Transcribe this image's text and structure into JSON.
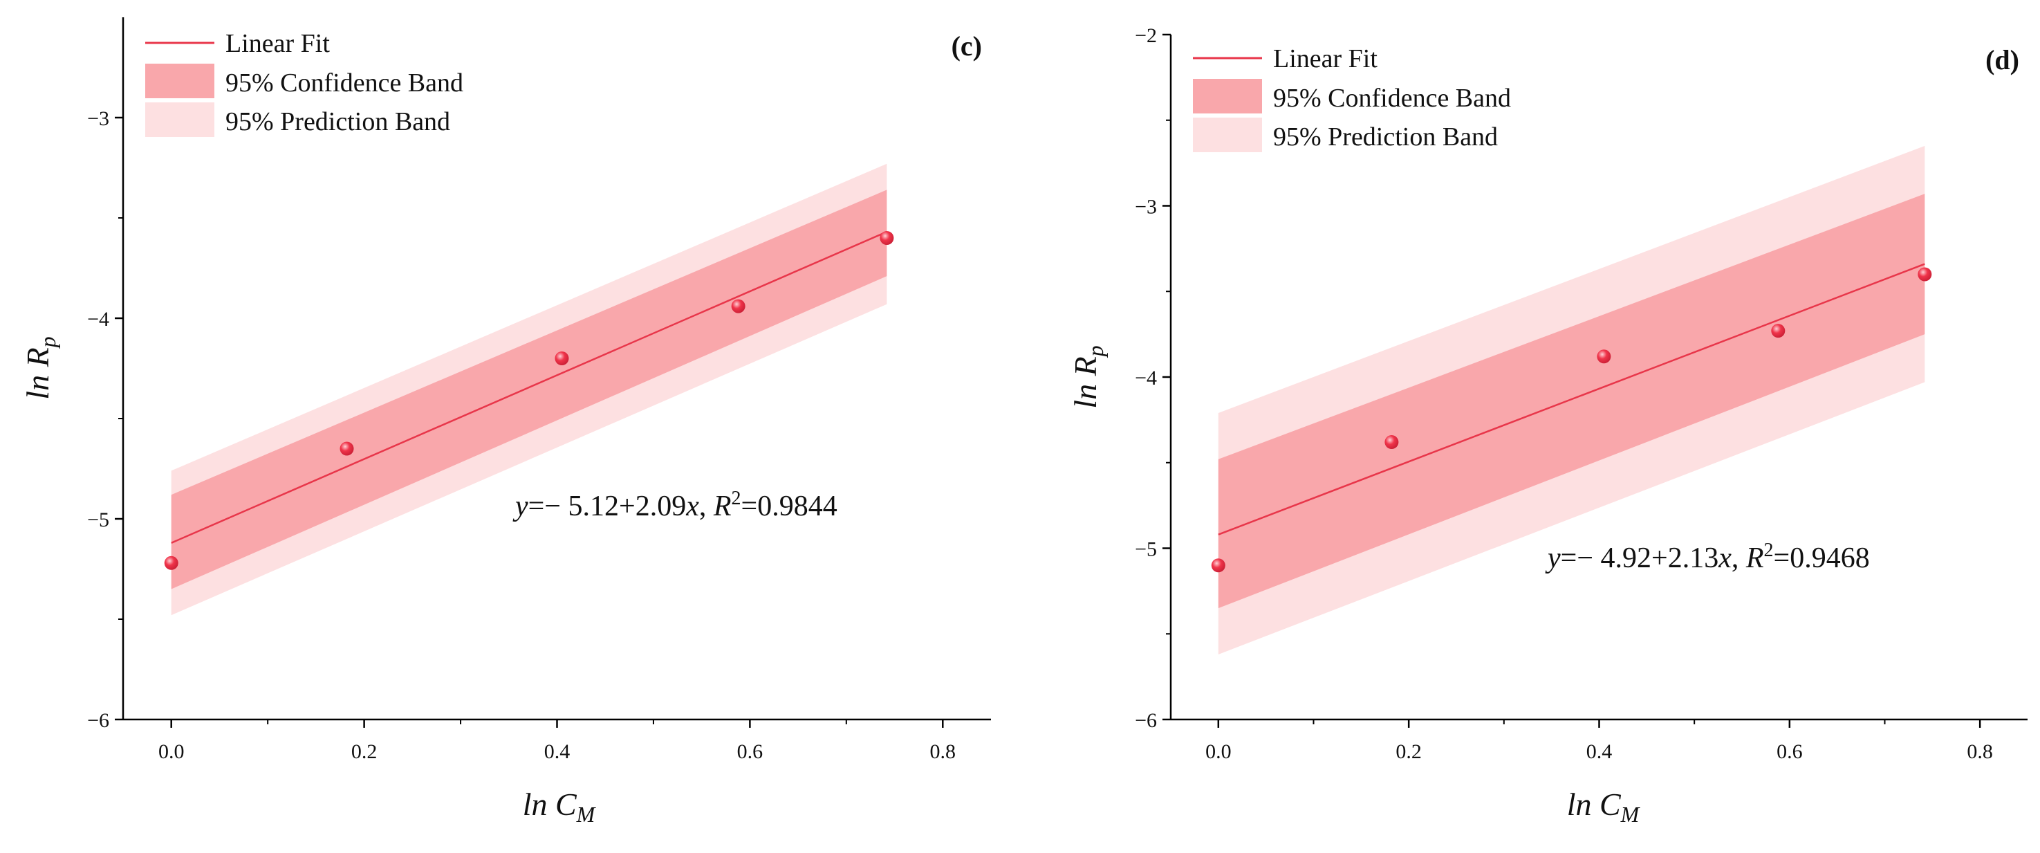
{
  "colors": {
    "fit_line": "#e8364a",
    "confidence_band": "#f9a7ab",
    "prediction_band": "#fde0e1",
    "point_fill": "#f0344a",
    "point_highlight": "#ffd0d5",
    "axis": "#000000"
  },
  "chart_data": [
    {
      "type": "scatter",
      "panel_label": "(c)",
      "xlabel_main": "ln C",
      "xlabel_sub": "M",
      "ylabel_main": "ln R",
      "ylabel_sub": "p",
      "xlim": [
        -0.05,
        0.85
      ],
      "ylim": [
        -6,
        -2.5
      ],
      "xticks": [
        0.0,
        0.2,
        0.4,
        0.6,
        0.8
      ],
      "xtick_labels": [
        "0.0",
        "0.2",
        "0.4",
        "0.6",
        "0.8"
      ],
      "yticks": [
        -6,
        -5,
        -4,
        -3
      ],
      "ytick_labels": [
        "−6",
        "−5",
        "−4",
        "−3"
      ],
      "grid": false,
      "legend": {
        "placement": "top-left",
        "entries": [
          "Linear Fit",
          "95% Confidence Band",
          "95% Prediction Band"
        ]
      },
      "points": {
        "x": [
          0.0,
          0.182,
          0.405,
          0.588,
          0.742
        ],
        "y": [
          -5.22,
          -4.65,
          -4.2,
          -3.94,
          -3.6
        ]
      },
      "fit": {
        "intercept": -5.12,
        "slope": 2.09,
        "x_range": [
          0.0,
          0.742
        ]
      },
      "confidence_band": {
        "x": [
          0.0,
          0.742
        ],
        "upper": [
          -4.88,
          -3.36
        ],
        "lower": [
          -5.35,
          -3.79
        ]
      },
      "prediction_band": {
        "x": [
          0.0,
          0.742
        ],
        "upper": [
          -4.76,
          -3.23
        ],
        "lower": [
          -5.48,
          -3.93
        ]
      },
      "equation": {
        "y": "y",
        "mid": "=− 5.12+2.09",
        "x": "x",
        "r_sep": ", ",
        "r": "R",
        "r_sup": "2",
        "r_val": "=0.9844"
      }
    },
    {
      "type": "scatter",
      "panel_label": "(d)",
      "xlabel_main": "ln C",
      "xlabel_sub": "M",
      "ylabel_main": "ln R",
      "ylabel_sub": "p",
      "xlim": [
        -0.05,
        0.85
      ],
      "ylim": [
        -6,
        -2
      ],
      "xticks": [
        0.0,
        0.2,
        0.4,
        0.6,
        0.8
      ],
      "xtick_labels": [
        "0.0",
        "0.2",
        "0.4",
        "0.6",
        "0.8"
      ],
      "yticks": [
        -6,
        -5,
        -4,
        -3,
        -2
      ],
      "ytick_labels": [
        "−6",
        "−5",
        "−4",
        "−3",
        "−2"
      ],
      "grid": false,
      "legend": {
        "placement": "top-left",
        "entries": [
          "Linear Fit",
          "95% Confidence Band",
          "95% Prediction Band"
        ]
      },
      "points": {
        "x": [
          0.0,
          0.182,
          0.405,
          0.588,
          0.742
        ],
        "y": [
          -5.1,
          -4.38,
          -3.88,
          -3.73,
          -3.4
        ]
      },
      "fit": {
        "intercept": -4.92,
        "slope": 2.13,
        "x_range": [
          0.0,
          0.742
        ]
      },
      "confidence_band": {
        "x": [
          0.0,
          0.742
        ],
        "upper": [
          -4.48,
          -2.93
        ],
        "lower": [
          -5.35,
          -3.75
        ]
      },
      "prediction_band": {
        "x": [
          0.0,
          0.742
        ],
        "upper": [
          -4.21,
          -2.65
        ],
        "lower": [
          -5.62,
          -4.03
        ]
      },
      "equation": {
        "y": "y",
        "mid": "=− 4.92+2.13",
        "x": "x",
        "r_sep": ", ",
        "r": "R",
        "r_sup": "2",
        "r_val": "=0.9468"
      }
    }
  ]
}
